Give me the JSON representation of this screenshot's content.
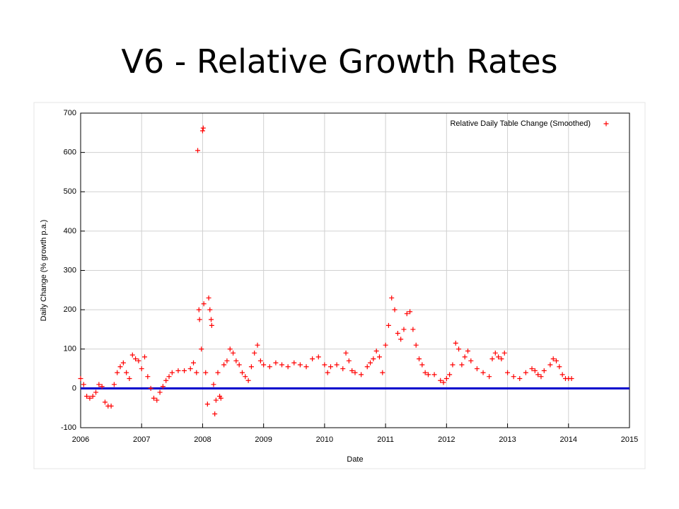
{
  "title": "V6 - Relative Growth Rates",
  "chart_data": {
    "type": "scatter",
    "xlabel": "Date",
    "ylabel": "Daily Change (% growth p.a.)",
    "xlim": [
      2006,
      2015
    ],
    "xticks": [
      2006,
      2007,
      2008,
      2009,
      2010,
      2011,
      2012,
      2013,
      2014,
      2015
    ],
    "ylim": [
      -100,
      700
    ],
    "yticks": [
      -100,
      0,
      100,
      200,
      300,
      400,
      500,
      600,
      700
    ],
    "grid": true,
    "legend": "top-right",
    "zero_line": {
      "value": 0,
      "color": "#0000cc"
    },
    "series": [
      {
        "name": "Relative Daily Table Change (Smoothed)",
        "color": "#ff0000",
        "x": [
          2006.0,
          2006.05,
          2006.1,
          2006.15,
          2006.2,
          2006.25,
          2006.3,
          2006.35,
          2006.4,
          2006.45,
          2006.5,
          2006.55,
          2006.6,
          2006.65,
          2006.7,
          2006.75,
          2006.8,
          2006.85,
          2006.9,
          2006.95,
          2007.0,
          2007.05,
          2007.1,
          2007.15,
          2007.2,
          2007.25,
          2007.3,
          2007.35,
          2007.4,
          2007.45,
          2007.5,
          2007.6,
          2007.7,
          2007.8,
          2007.85,
          2007.9,
          2007.92,
          2007.94,
          2007.95,
          2007.98,
          2008.0,
          2008.01,
          2008.02,
          2008.05,
          2008.08,
          2008.1,
          2008.12,
          2008.14,
          2008.15,
          2008.18,
          2008.2,
          2008.22,
          2008.25,
          2008.28,
          2008.3,
          2008.35,
          2008.4,
          2008.45,
          2008.5,
          2008.55,
          2008.6,
          2008.65,
          2008.7,
          2008.75,
          2008.8,
          2008.85,
          2008.9,
          2008.95,
          2009.0,
          2009.1,
          2009.2,
          2009.3,
          2009.4,
          2009.5,
          2009.6,
          2009.7,
          2009.8,
          2009.9,
          2010.0,
          2010.05,
          2010.1,
          2010.2,
          2010.3,
          2010.35,
          2010.4,
          2010.45,
          2010.5,
          2010.6,
          2010.7,
          2010.75,
          2010.8,
          2010.85,
          2010.9,
          2010.95,
          2011.0,
          2011.05,
          2011.1,
          2011.15,
          2011.2,
          2011.25,
          2011.3,
          2011.35,
          2011.4,
          2011.45,
          2011.5,
          2011.55,
          2011.6,
          2011.65,
          2011.7,
          2011.8,
          2011.9,
          2011.95,
          2012.0,
          2012.05,
          2012.1,
          2012.15,
          2012.2,
          2012.25,
          2012.3,
          2012.35,
          2012.4,
          2012.5,
          2012.6,
          2012.7,
          2012.75,
          2012.8,
          2012.85,
          2012.9,
          2012.95,
          2013.0,
          2013.1,
          2013.2,
          2013.3,
          2013.4,
          2013.45,
          2013.5,
          2013.55,
          2013.6,
          2013.7,
          2013.75,
          2013.8,
          2013.85,
          2013.9,
          2013.95,
          2014.0,
          2014.05
        ],
        "values": [
          25,
          10,
          -20,
          -25,
          -20,
          -10,
          10,
          5,
          -35,
          -45,
          -45,
          10,
          40,
          55,
          65,
          40,
          25,
          85,
          75,
          70,
          50,
          80,
          30,
          0,
          -25,
          -30,
          -10,
          5,
          20,
          30,
          40,
          45,
          45,
          50,
          65,
          40,
          605,
          200,
          175,
          100,
          655,
          662,
          215,
          40,
          -40,
          230,
          200,
          175,
          160,
          10,
          -65,
          -30,
          40,
          -20,
          -25,
          60,
          70,
          100,
          90,
          70,
          60,
          40,
          30,
          20,
          55,
          90,
          110,
          70,
          60,
          55,
          65,
          60,
          55,
          65,
          60,
          55,
          75,
          80,
          60,
          40,
          55,
          60,
          50,
          90,
          70,
          45,
          40,
          35,
          55,
          65,
          75,
          95,
          80,
          40,
          110,
          160,
          230,
          200,
          140,
          125,
          150,
          190,
          195,
          150,
          110,
          75,
          60,
          40,
          35,
          35,
          20,
          15,
          25,
          35,
          60,
          115,
          100,
          60,
          80,
          95,
          70,
          50,
          40,
          30,
          75,
          90,
          80,
          75,
          90,
          40,
          30,
          25,
          40,
          50,
          45,
          35,
          30,
          45,
          60,
          75,
          70,
          55,
          35,
          25,
          25,
          25
        ]
      }
    ]
  }
}
